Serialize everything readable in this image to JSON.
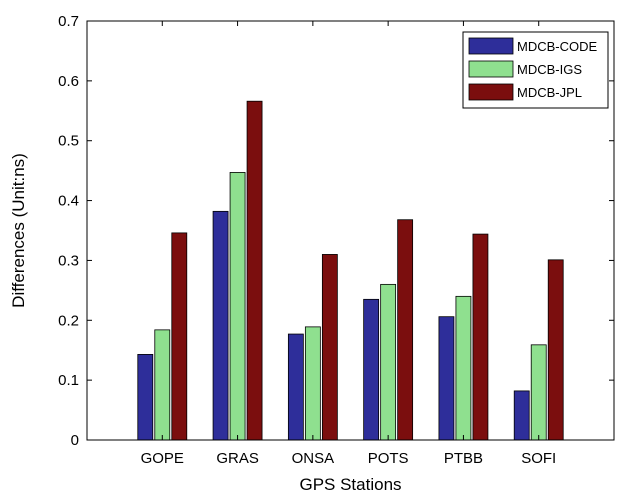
{
  "chart_data": {
    "type": "bar",
    "title": "",
    "xlabel": "GPS Stations",
    "ylabel": "Differences (Unit:ns)",
    "categories": [
      "GOPE",
      "GRAS",
      "ONSA",
      "POTS",
      "PTBB",
      "SOFI"
    ],
    "ylim": [
      0,
      0.7
    ],
    "yticks": [
      "0",
      "0.1",
      "0.2",
      "0.3",
      "0.4",
      "0.5",
      "0.6",
      "0.7"
    ],
    "grid": false,
    "legend_position": "top-right",
    "series": [
      {
        "name": "MDCB-CODE",
        "color": "#2e2e9a",
        "values": [
          0.143,
          0.382,
          0.177,
          0.235,
          0.206,
          0.082
        ]
      },
      {
        "name": "MDCB-IGS",
        "color": "#8fe08f",
        "values": [
          0.184,
          0.447,
          0.189,
          0.26,
          0.24,
          0.159
        ]
      },
      {
        "name": "MDCB-JPL",
        "color": "#7b0e0e",
        "values": [
          0.346,
          0.566,
          0.31,
          0.368,
          0.344,
          0.301
        ]
      }
    ]
  }
}
